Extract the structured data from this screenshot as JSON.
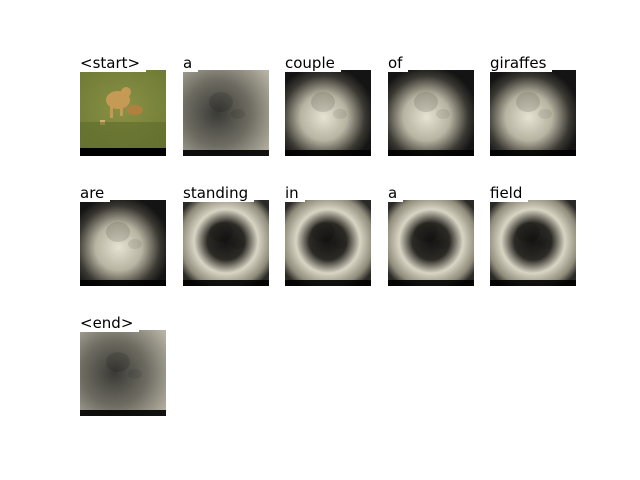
{
  "tokens": [
    {
      "word": "<start>",
      "map": "photo"
    },
    {
      "word": "a",
      "map": "diffuse"
    },
    {
      "word": "couple",
      "map": "center"
    },
    {
      "word": "of",
      "map": "center"
    },
    {
      "word": "giraffes",
      "map": "center"
    },
    {
      "word": "are",
      "map": "center"
    },
    {
      "word": "standing",
      "map": "ring"
    },
    {
      "word": "in",
      "map": "ring"
    },
    {
      "word": "a",
      "map": "ring"
    },
    {
      "word": "field",
      "map": "ring"
    },
    {
      "word": "<end>",
      "map": "diffuse"
    }
  ],
  "colors": {
    "grass": "#6e7a35",
    "cheetah": "#c49a55",
    "dark": "#141414",
    "bright": "#e6e3d3"
  }
}
